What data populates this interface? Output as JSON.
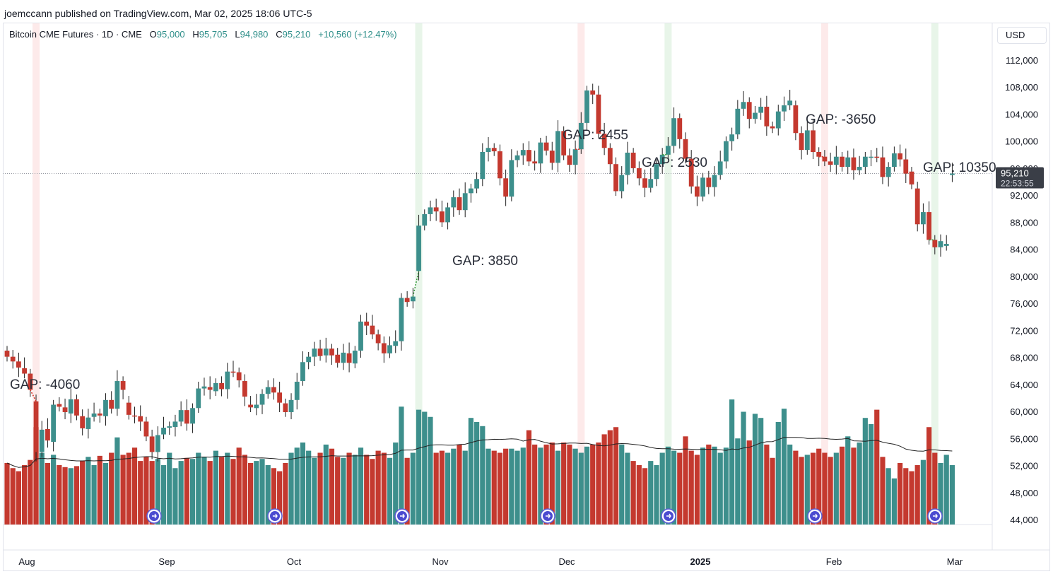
{
  "header": {
    "published": "joemccann published on TradingView.com, Mar 02, 2025 18:06 UTC-5"
  },
  "legend": {
    "symbol": "Bitcoin CME Futures · 1D · CME",
    "o_label": "O",
    "o_value": "95,000",
    "h_label": "H",
    "h_value": "95,705",
    "l_label": "L",
    "l_value": "94,980",
    "c_label": "C",
    "c_value": "95,210",
    "change": "+10,560 (+12.47%)"
  },
  "currency_button": "USD",
  "price_tag": {
    "price": "95,210",
    "countdown": "22:53:55"
  },
  "colors": {
    "up": "#3d8f8c",
    "down": "#c4392f",
    "gap_up_band": "#e8f5e9",
    "gap_down_band": "#fdeaea",
    "tag_bg": "#3a3e47"
  },
  "chart_data": {
    "type": "candlestick",
    "title": "Bitcoin CME Futures · 1D · CME",
    "y_axis": {
      "min": 44000,
      "max": 112000,
      "ticks": [
        "112,000",
        "108,000",
        "104,000",
        "100,000",
        "96,000",
        "92,000",
        "88,000",
        "84,000",
        "80,000",
        "76,000",
        "72,000",
        "68,000",
        "64,000",
        "60,000",
        "56,000",
        "52,000",
        "48,000",
        "44,000"
      ]
    },
    "x_axis": {
      "labels": [
        "Aug",
        "Sep",
        "Oct",
        "Nov",
        "Dec",
        "2025",
        "Feb",
        "Mar"
      ],
      "bold": [
        "2025"
      ]
    },
    "last_price": 95210,
    "candles": [
      {
        "o": 69000,
        "c": 68100
      },
      {
        "o": 68100,
        "c": 67400
      },
      {
        "o": 67400,
        "c": 66500
      },
      {
        "o": 66400,
        "c": 65600
      },
      {
        "o": 65600,
        "c": 63200
      },
      {
        "o": 61500,
        "c": 54000
      },
      {
        "o": 54000,
        "c": 57300
      },
      {
        "o": 57400,
        "c": 55700
      },
      {
        "o": 55500,
        "c": 61000
      },
      {
        "o": 61100,
        "c": 60700
      },
      {
        "o": 60600,
        "c": 59900
      },
      {
        "o": 59700,
        "c": 61800
      },
      {
        "o": 61800,
        "c": 59400
      },
      {
        "o": 59300,
        "c": 57500
      },
      {
        "o": 57400,
        "c": 59100
      },
      {
        "o": 59200,
        "c": 59700
      },
      {
        "o": 59700,
        "c": 59400
      },
      {
        "o": 59300,
        "c": 61700
      },
      {
        "o": 61700,
        "c": 60400
      },
      {
        "o": 60400,
        "c": 64500
      },
      {
        "o": 64500,
        "c": 63200
      },
      {
        "o": 61300,
        "c": 59500
      },
      {
        "o": 59400,
        "c": 59300
      },
      {
        "o": 59300,
        "c": 58500
      },
      {
        "o": 58500,
        "c": 56300
      },
      {
        "o": 56300,
        "c": 54000
      },
      {
        "o": 54000,
        "c": 56500
      },
      {
        "o": 56600,
        "c": 57600
      },
      {
        "o": 57600,
        "c": 57800
      },
      {
        "o": 57700,
        "c": 58500
      },
      {
        "o": 58500,
        "c": 60200
      },
      {
        "o": 60200,
        "c": 58200
      },
      {
        "o": 58200,
        "c": 60500
      },
      {
        "o": 60500,
        "c": 63400
      },
      {
        "o": 63400,
        "c": 63700
      },
      {
        "o": 63600,
        "c": 63200
      },
      {
        "o": 63000,
        "c": 64200
      },
      {
        "o": 64200,
        "c": 63300
      },
      {
        "o": 63300,
        "c": 65900
      },
      {
        "o": 65900,
        "c": 65800
      },
      {
        "o": 65800,
        "c": 64600
      },
      {
        "o": 64500,
        "c": 62200
      },
      {
        "o": 61000,
        "c": 60600
      },
      {
        "o": 60500,
        "c": 61000
      },
      {
        "o": 61000,
        "c": 62600
      },
      {
        "o": 62600,
        "c": 63600
      },
      {
        "o": 63600,
        "c": 62800
      },
      {
        "o": 62800,
        "c": 61300
      },
      {
        "o": 61200,
        "c": 59900
      },
      {
        "o": 59900,
        "c": 61700
      },
      {
        "o": 61700,
        "c": 64400
      },
      {
        "o": 64500,
        "c": 67300
      },
      {
        "o": 67300,
        "c": 68100
      },
      {
        "o": 68100,
        "c": 69300
      },
      {
        "o": 69300,
        "c": 68200
      },
      {
        "o": 68300,
        "c": 69300
      },
      {
        "o": 69300,
        "c": 68300
      },
      {
        "o": 68400,
        "c": 67200
      },
      {
        "o": 67200,
        "c": 68700
      },
      {
        "o": 68600,
        "c": 67200
      },
      {
        "o": 67100,
        "c": 69000
      },
      {
        "o": 69000,
        "c": 73300
      },
      {
        "o": 73300,
        "c": 72700
      },
      {
        "o": 72700,
        "c": 71400
      },
      {
        "o": 71400,
        "c": 70100
      },
      {
        "o": 70100,
        "c": 68600
      },
      {
        "o": 68600,
        "c": 69800
      },
      {
        "o": 69700,
        "c": 70400
      },
      {
        "o": 70400,
        "c": 76800
      },
      {
        "o": 76800,
        "c": 76200
      },
      {
        "o": 76300,
        "c": 77000
      },
      {
        "o": 80800,
        "c": 87500
      },
      {
        "o": 87500,
        "c": 89200
      },
      {
        "o": 89200,
        "c": 90200
      },
      {
        "o": 90200,
        "c": 89600
      },
      {
        "o": 89600,
        "c": 88000
      },
      {
        "o": 88000,
        "c": 90200
      },
      {
        "o": 90200,
        "c": 91700
      },
      {
        "o": 91700,
        "c": 89800
      },
      {
        "o": 89800,
        "c": 92300
      },
      {
        "o": 92300,
        "c": 93000
      },
      {
        "o": 93000,
        "c": 94400
      },
      {
        "o": 94400,
        "c": 98400
      },
      {
        "o": 98400,
        "c": 99000
      },
      {
        "o": 99000,
        "c": 98500
      },
      {
        "o": 98500,
        "c": 94500
      },
      {
        "o": 94500,
        "c": 91800
      },
      {
        "o": 91800,
        "c": 97200
      },
      {
        "o": 97200,
        "c": 97900
      },
      {
        "o": 97900,
        "c": 98700
      },
      {
        "o": 98700,
        "c": 97000
      },
      {
        "o": 97000,
        "c": 96700
      },
      {
        "o": 96700,
        "c": 99800
      },
      {
        "o": 99800,
        "c": 98600
      },
      {
        "o": 98600,
        "c": 96800
      },
      {
        "o": 96800,
        "c": 101500
      },
      {
        "o": 101500,
        "c": 97900
      },
      {
        "o": 97900,
        "c": 96500
      },
      {
        "o": 96500,
        "c": 98800
      },
      {
        "o": 98800,
        "c": 102700
      },
      {
        "o": 102700,
        "c": 107500
      },
      {
        "o": 107500,
        "c": 106900
      },
      {
        "o": 106900,
        "c": 101100
      },
      {
        "o": 101100,
        "c": 99000
      },
      {
        "o": 99000,
        "c": 96600
      },
      {
        "o": 96600,
        "c": 92600
      },
      {
        "o": 92600,
        "c": 95000
      },
      {
        "o": 95000,
        "c": 98300
      },
      {
        "o": 98300,
        "c": 96000
      },
      {
        "o": 96000,
        "c": 94500
      },
      {
        "o": 94500,
        "c": 93100
      },
      {
        "o": 93100,
        "c": 94400
      },
      {
        "o": 94400,
        "c": 96600
      },
      {
        "o": 96600,
        "c": 98000
      },
      {
        "o": 98000,
        "c": 99300
      },
      {
        "o": 99300,
        "c": 103400
      },
      {
        "o": 103400,
        "c": 100300
      },
      {
        "o": 100300,
        "c": 97400
      },
      {
        "o": 97400,
        "c": 93300
      },
      {
        "o": 93300,
        "c": 91800
      },
      {
        "o": 91800,
        "c": 94600
      },
      {
        "o": 94600,
        "c": 93200
      },
      {
        "o": 93200,
        "c": 95000
      },
      {
        "o": 95000,
        "c": 97000
      },
      {
        "o": 97000,
        "c": 100000
      },
      {
        "o": 100000,
        "c": 101000
      },
      {
        "o": 101000,
        "c": 104800
      },
      {
        "o": 104800,
        "c": 105800
      },
      {
        "o": 105800,
        "c": 103300
      },
      {
        "o": 103300,
        "c": 104200
      },
      {
        "o": 104200,
        "c": 105100
      },
      {
        "o": 105100,
        "c": 102200
      },
      {
        "o": 102200,
        "c": 101900
      },
      {
        "o": 101900,
        "c": 104400
      },
      {
        "o": 104400,
        "c": 105300
      },
      {
        "o": 105300,
        "c": 106000
      },
      {
        "o": 105300,
        "c": 101200
      },
      {
        "o": 101200,
        "c": 98700
      },
      {
        "o": 98700,
        "c": 101600
      },
      {
        "o": 101600,
        "c": 98400
      },
      {
        "o": 98400,
        "c": 97700
      },
      {
        "o": 97700,
        "c": 97000
      },
      {
        "o": 97000,
        "c": 96500
      },
      {
        "o": 96500,
        "c": 97700
      },
      {
        "o": 97700,
        "c": 96200
      },
      {
        "o": 96200,
        "c": 97600
      },
      {
        "o": 97600,
        "c": 95700
      },
      {
        "o": 95700,
        "c": 96200
      },
      {
        "o": 96200,
        "c": 97700
      },
      {
        "o": 97700,
        "c": 97700
      },
      {
        "o": 97700,
        "c": 97600
      },
      {
        "o": 97600,
        "c": 94700
      },
      {
        "o": 94700,
        "c": 96200
      },
      {
        "o": 96200,
        "c": 98200
      },
      {
        "o": 98200,
        "c": 97300
      },
      {
        "o": 97300,
        "c": 95200
      },
      {
        "o": 95500,
        "c": 93600
      },
      {
        "o": 93000,
        "c": 87700
      },
      {
        "o": 87700,
        "c": 89500
      },
      {
        "o": 89500,
        "c": 85400
      },
      {
        "o": 85400,
        "c": 84300
      },
      {
        "o": 84300,
        "c": 85200
      },
      {
        "o": 84500,
        "c": 84800
      },
      {
        "o": 95000,
        "c": 95210
      }
    ],
    "volume_ma_note": "volume histogram with moving average",
    "gaps": [
      {
        "label": "GAP: -4060",
        "direction": "down"
      },
      {
        "label": "GAP: 3850",
        "direction": "up"
      },
      {
        "label": "GAP: 2455",
        "direction": "down"
      },
      {
        "label": "GAP: 2530",
        "direction": "up"
      },
      {
        "label": "GAP: -3650",
        "direction": "down"
      },
      {
        "label": "GAP: 10350",
        "direction": "up"
      }
    ]
  }
}
